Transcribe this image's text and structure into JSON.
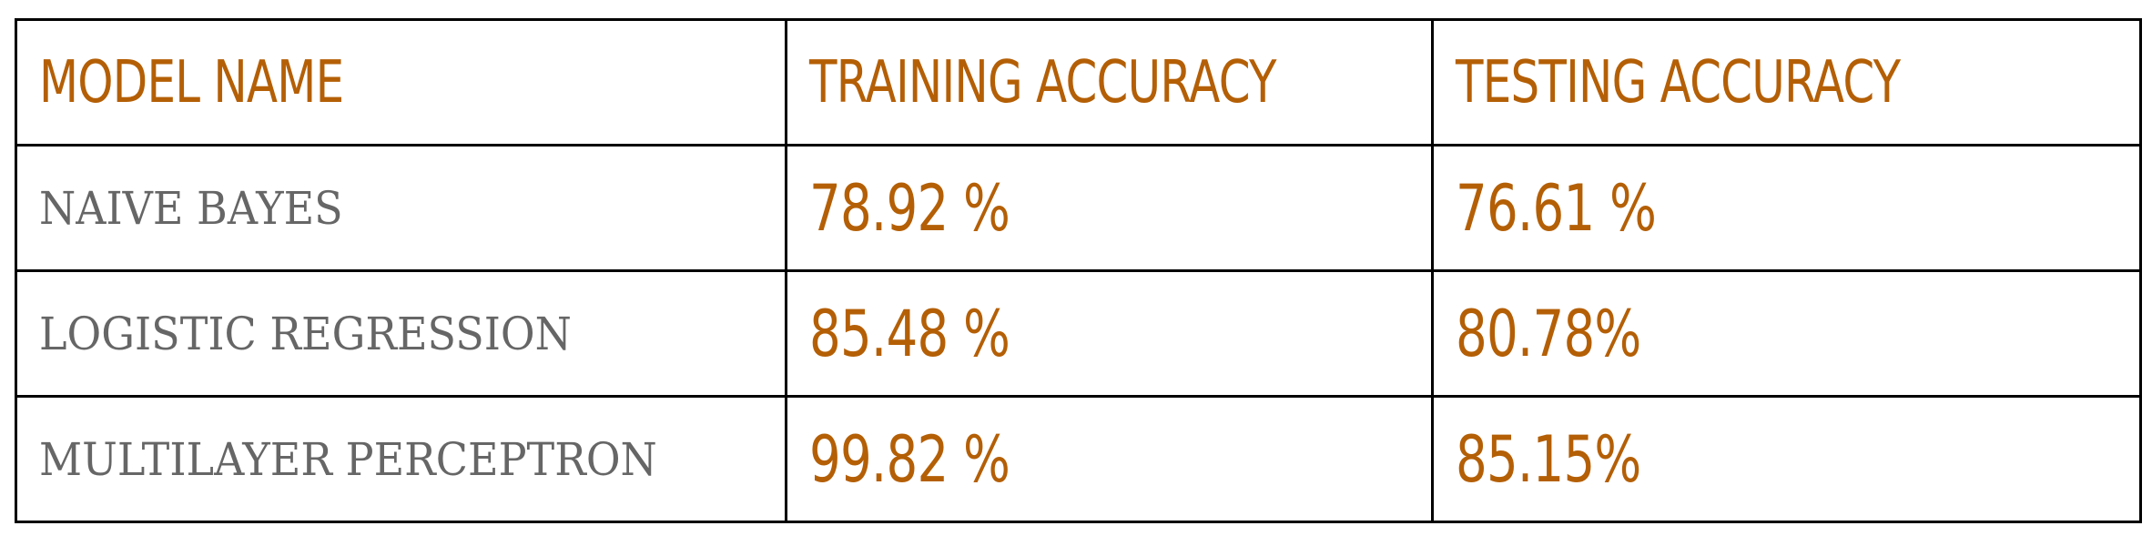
{
  "table": {
    "headers": [
      "MODEL NAME",
      "TRAINING ACCURACY",
      "TESTING ACCURACY"
    ],
    "rows": [
      {
        "model": "NAIVE BAYES",
        "training": "78.92 %",
        "testing": "76.61 %"
      },
      {
        "model": "LOGISTIC REGRESSION",
        "training": "85.48 %",
        "testing": "80.78%"
      },
      {
        "model": "MULTILAYER PERCEPTRON",
        "training": "99.82 %",
        "testing": "85.15%"
      }
    ]
  },
  "colors": {
    "accent": "#b45f06",
    "model_name_text": "#666666",
    "border": "#000000",
    "background": "#ffffff"
  }
}
